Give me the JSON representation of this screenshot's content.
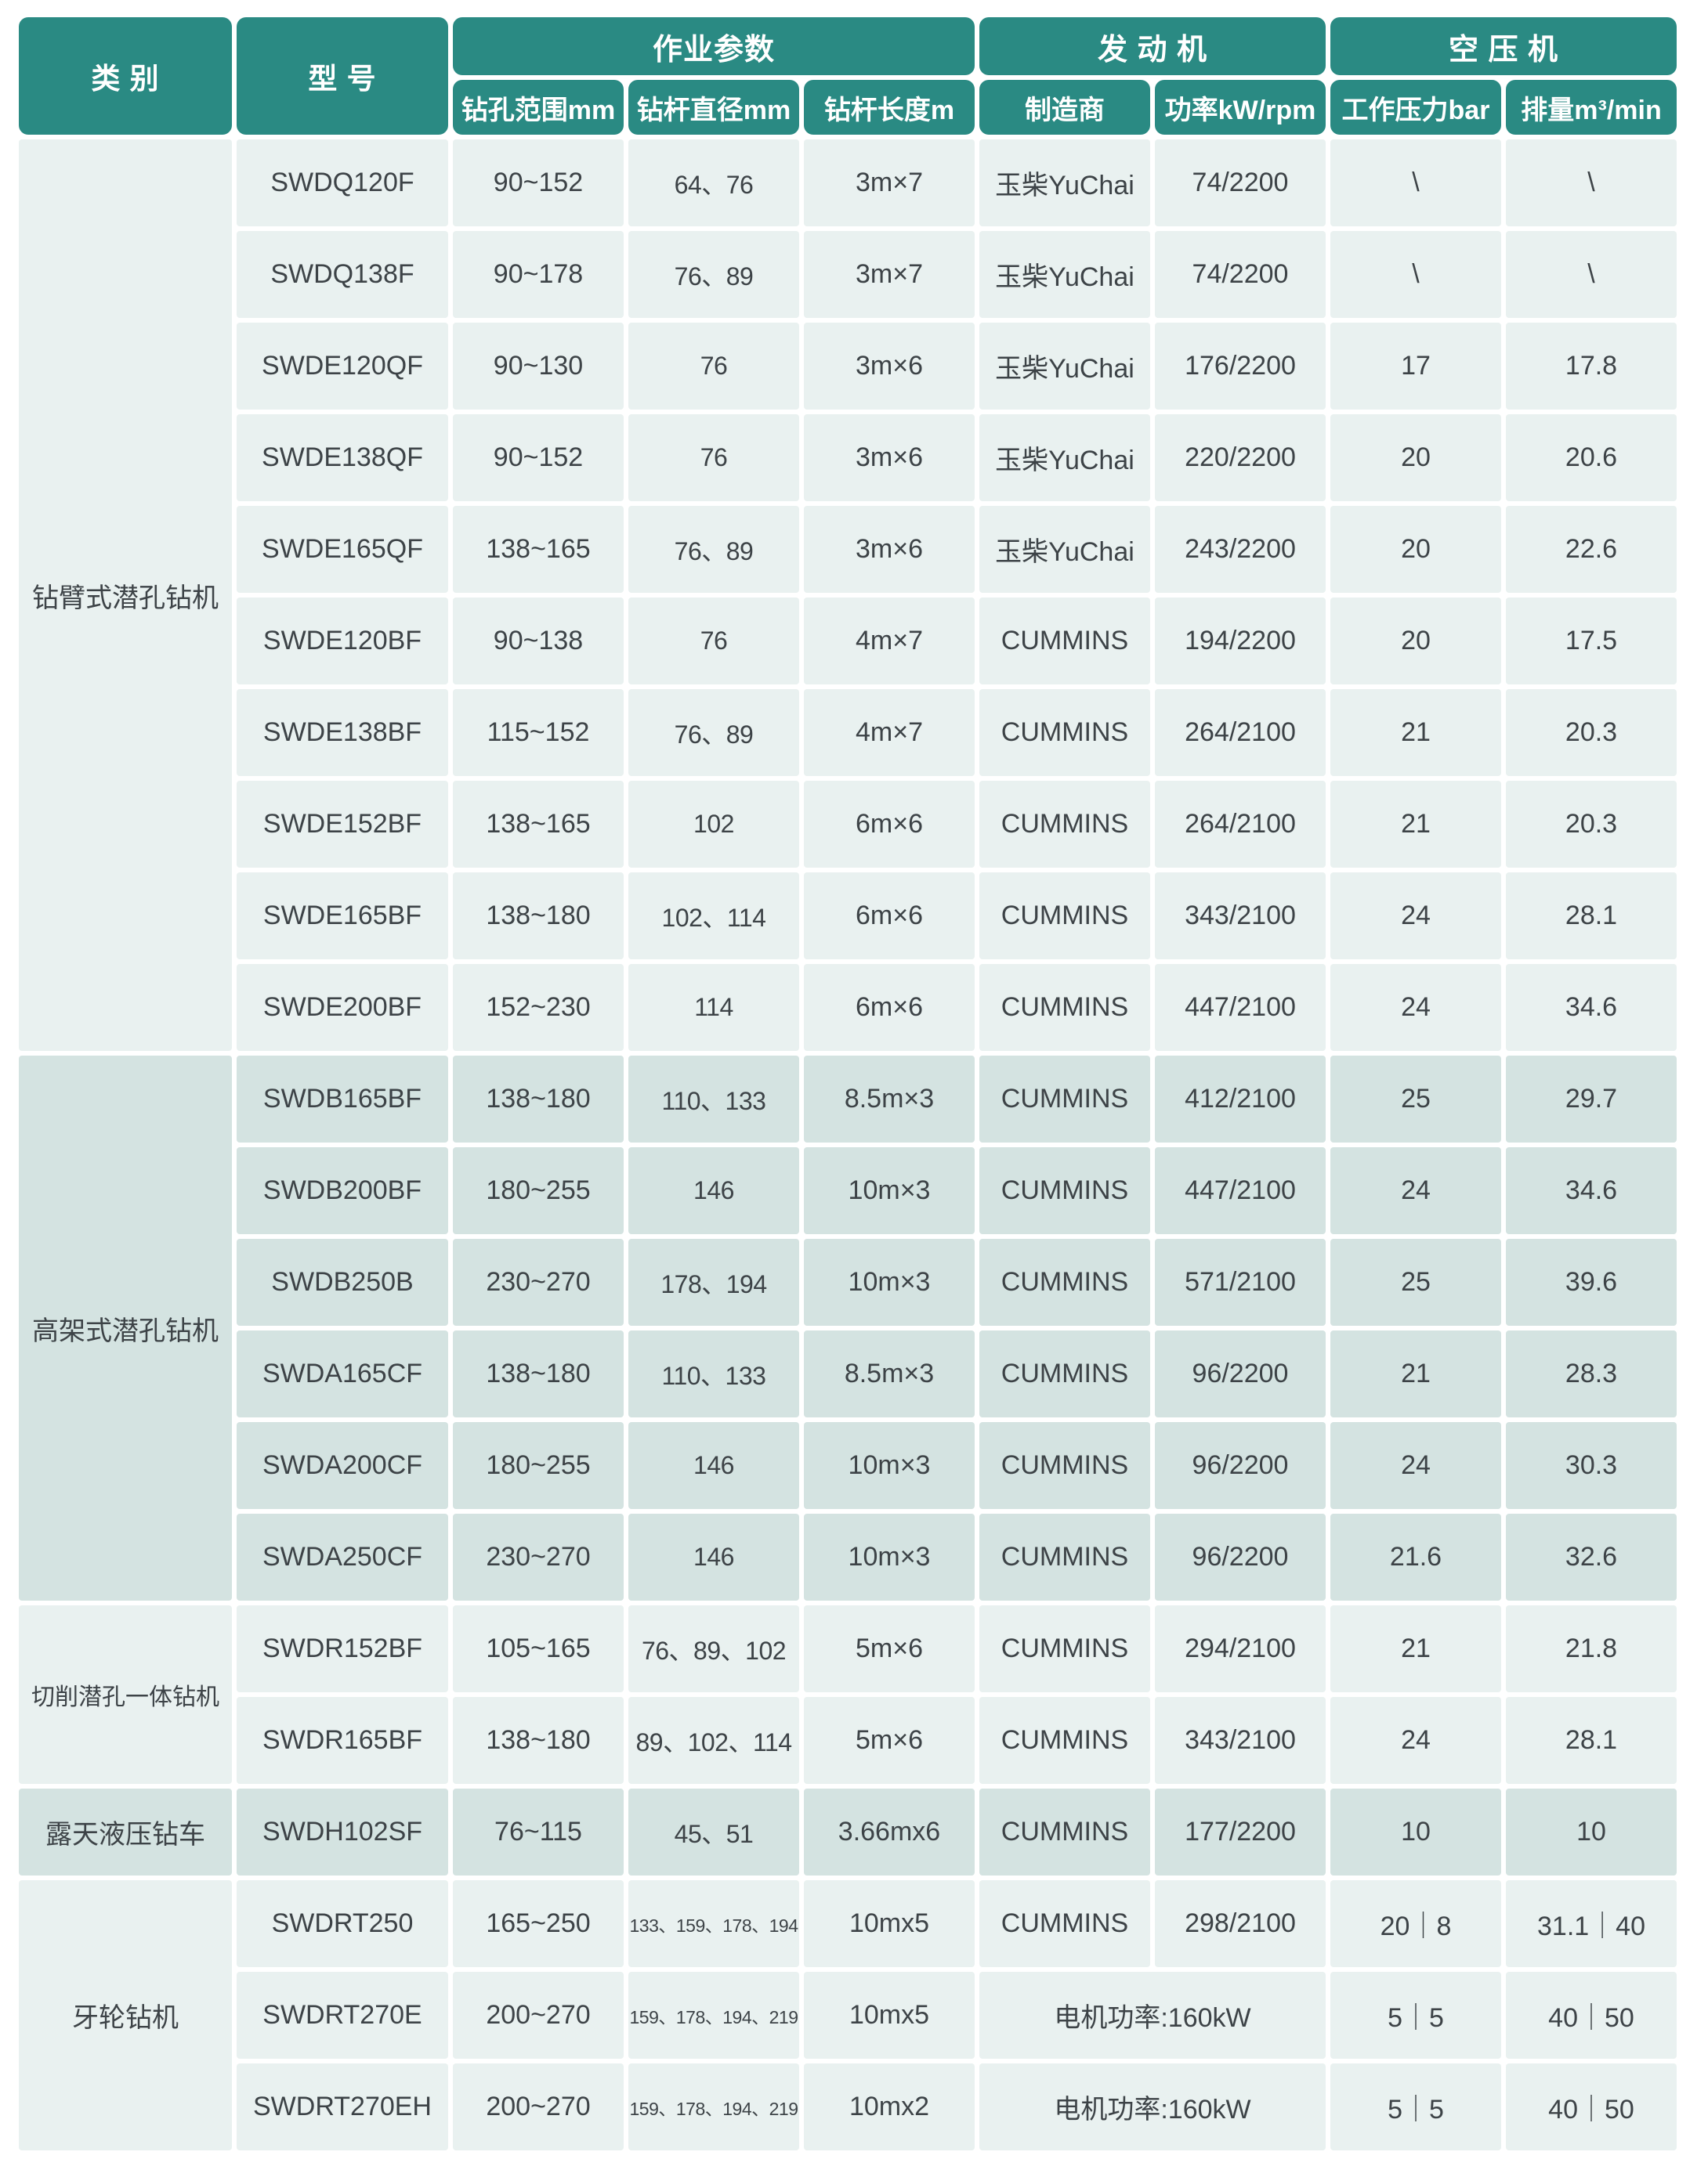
{
  "colors": {
    "header_teal": "#2A8A83",
    "section_light": "#E9F1F0",
    "section_dark": "#D4E3E1",
    "text_dark": "#3D4347",
    "header_text": "#FFFFFF",
    "background": "#FFFFFF"
  },
  "header": {
    "category": "类 别",
    "model": "型 号",
    "group_params": "作业参数",
    "group_engine": "发 动 机",
    "group_compressor": "空 压 机",
    "col_range": "钻孔范围mm",
    "col_diameter": "钻杆直径mm",
    "col_length": "钻杆长度m",
    "col_maker": "制造商",
    "col_power": "功率kW/rpm",
    "col_pressure": "工作压力bar",
    "col_displacement": "排量m³/min"
  },
  "sections": [
    {
      "category": "钻臂式潜孔钻机",
      "rows": [
        {
          "model": "SWDQ120F",
          "range": "90~152",
          "diameter": "64、76",
          "length": "3m×7",
          "maker": "玉柴YuChai",
          "power": "74/2200",
          "pressure": "\\",
          "displacement": "\\"
        },
        {
          "model": "SWDQ138F",
          "range": "90~178",
          "diameter": "76、89",
          "length": "3m×7",
          "maker": "玉柴YuChai",
          "power": "74/2200",
          "pressure": "\\",
          "displacement": "\\"
        },
        {
          "model": "SWDE120QF",
          "range": "90~130",
          "diameter": "76",
          "length": "3m×6",
          "maker": "玉柴YuChai",
          "power": "176/2200",
          "pressure": "17",
          "displacement": "17.8"
        },
        {
          "model": "SWDE138QF",
          "range": "90~152",
          "diameter": "76",
          "length": "3m×6",
          "maker": "玉柴YuChai",
          "power": "220/2200",
          "pressure": "20",
          "displacement": "20.6"
        },
        {
          "model": "SWDE165QF",
          "range": "138~165",
          "diameter": "76、89",
          "length": "3m×6",
          "maker": "玉柴YuChai",
          "power": "243/2200",
          "pressure": "20",
          "displacement": "22.6"
        },
        {
          "model": "SWDE120BF",
          "range": "90~138",
          "diameter": "76",
          "length": "4m×7",
          "maker": "CUMMINS",
          "power": "194/2200",
          "pressure": "20",
          "displacement": "17.5"
        },
        {
          "model": "SWDE138BF",
          "range": "115~152",
          "diameter": "76、89",
          "length": "4m×7",
          "maker": "CUMMINS",
          "power": "264/2100",
          "pressure": "21",
          "displacement": "20.3"
        },
        {
          "model": "SWDE152BF",
          "range": "138~165",
          "diameter": "102",
          "length": "6m×6",
          "maker": "CUMMINS",
          "power": "264/2100",
          "pressure": "21",
          "displacement": "20.3"
        },
        {
          "model": "SWDE165BF",
          "range": "138~180",
          "diameter": "102、114",
          "length": "6m×6",
          "maker": "CUMMINS",
          "power": "343/2100",
          "pressure": "24",
          "displacement": "28.1"
        },
        {
          "model": "SWDE200BF",
          "range": "152~230",
          "diameter": "114",
          "length": "6m×6",
          "maker": "CUMMINS",
          "power": "447/2100",
          "pressure": "24",
          "displacement": "34.6"
        }
      ]
    },
    {
      "category": "高架式潜孔钻机",
      "rows": [
        {
          "model": "SWDB165BF",
          "range": "138~180",
          "diameter": "110、133",
          "length": "8.5m×3",
          "maker": "CUMMINS",
          "power": "412/2100",
          "pressure": "25",
          "displacement": "29.7"
        },
        {
          "model": "SWDB200BF",
          "range": "180~255",
          "diameter": "146",
          "length": "10m×3",
          "maker": "CUMMINS",
          "power": "447/2100",
          "pressure": "24",
          "displacement": "34.6"
        },
        {
          "model": "SWDB250B",
          "range": "230~270",
          "diameter": "178、194",
          "length": "10m×3",
          "maker": "CUMMINS",
          "power": "571/2100",
          "pressure": "25",
          "displacement": "39.6"
        },
        {
          "model": "SWDA165CF",
          "range": "138~180",
          "diameter": "110、133",
          "length": "8.5m×3",
          "maker": "CUMMINS",
          "power": "96/2200",
          "pressure": "21",
          "displacement": "28.3"
        },
        {
          "model": "SWDA200CF",
          "range": "180~255",
          "diameter": "146",
          "length": "10m×3",
          "maker": "CUMMINS",
          "power": "96/2200",
          "pressure": "24",
          "displacement": "30.3"
        },
        {
          "model": "SWDA250CF",
          "range": "230~270",
          "diameter": "146",
          "length": "10m×3",
          "maker": "CUMMINS",
          "power": "96/2200",
          "pressure": "21.6",
          "displacement": "32.6"
        }
      ]
    },
    {
      "category": "切削潜孔一体钻机",
      "rows": [
        {
          "model": "SWDR152BF",
          "range": "105~165",
          "diameter": "76、89、102",
          "length": "5m×6",
          "maker": "CUMMINS",
          "power": "294/2100",
          "pressure": "21",
          "displacement": "21.8"
        },
        {
          "model": "SWDR165BF",
          "range": "138~180",
          "diameter": "89、102、114",
          "length": "5m×6",
          "maker": "CUMMINS",
          "power": "343/2100",
          "pressure": "24",
          "displacement": "28.1"
        }
      ]
    },
    {
      "category": "露天液压钻车",
      "rows": [
        {
          "model": "SWDH102SF",
          "range": "76~115",
          "diameter": "45、51",
          "length": "3.66mx6",
          "maker": "CUMMINS",
          "power": "177/2200",
          "pressure": "10",
          "displacement": "10"
        }
      ]
    },
    {
      "category": "牙轮钻机",
      "rows": [
        {
          "model": "SWDRT250",
          "range": "165~250",
          "diameter": "133、159、178、194",
          "length": "10mx5",
          "maker": "CUMMINS",
          "power": "298/2100",
          "pressure": "20｜8",
          "displacement": "31.1｜40"
        },
        {
          "model": "SWDRT270E",
          "range": "200~270",
          "diameter": "159、178、194、219",
          "length": "10mx5",
          "engine": "电机功率:160kW",
          "pressure": "5｜5",
          "displacement": "40｜50"
        },
        {
          "model": "SWDRT270EH",
          "range": "200~270",
          "diameter": "159、178、194、219",
          "length": "10mx2",
          "engine": "电机功率:160kW",
          "pressure": "5｜5",
          "displacement": "40｜50"
        }
      ]
    }
  ]
}
